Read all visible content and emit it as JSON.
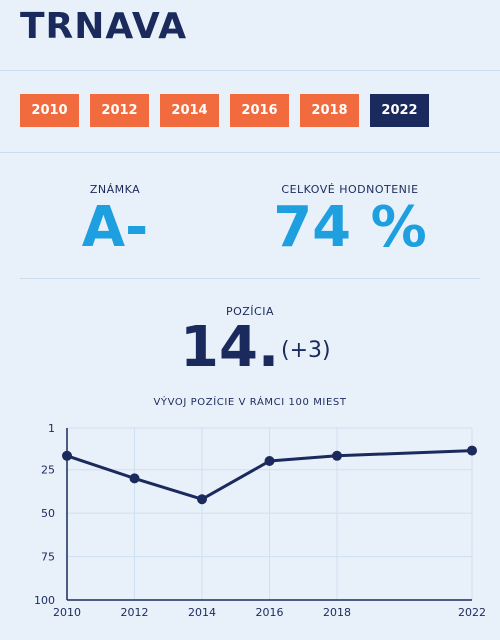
{
  "header": {
    "title": "TRNAVA"
  },
  "year_tabs": [
    {
      "label": "2010",
      "active": false
    },
    {
      "label": "2012",
      "active": false
    },
    {
      "label": "2014",
      "active": false
    },
    {
      "label": "2016",
      "active": false
    },
    {
      "label": "2018",
      "active": false
    },
    {
      "label": "2022",
      "active": true
    }
  ],
  "grade": {
    "label": "ZNÁMKA",
    "value": "A-"
  },
  "overall": {
    "label": "CELKOVÉ HODNOTENIE",
    "value": "74 %"
  },
  "position": {
    "label": "POZÍCIA",
    "value": "14.",
    "change": "(+3)"
  },
  "colors": {
    "accent_orange": "#f26b3e",
    "navy": "#1b2a5c",
    "blue": "#1d9fe0",
    "background": "#e8f1fa"
  },
  "chart_data": {
    "type": "line",
    "title": "VÝVOJ POZÍCIE V RÁMCI 100 MIEST",
    "x": [
      2010,
      2012,
      2014,
      2016,
      2018,
      2022
    ],
    "x_tick_labels": [
      "2010",
      "2012",
      "2014",
      "2016",
      "2018",
      "2022"
    ],
    "y": [
      17,
      30,
      42,
      20,
      17,
      14
    ],
    "y_tick_labels": [
      "1",
      "25",
      "50",
      "75",
      "100"
    ],
    "y_ticks": [
      1,
      25,
      50,
      75,
      100
    ],
    "ylim": [
      1,
      100
    ],
    "y_inverted": true,
    "xlim": [
      2010,
      2022
    ],
    "grid": true,
    "legend": "none"
  }
}
